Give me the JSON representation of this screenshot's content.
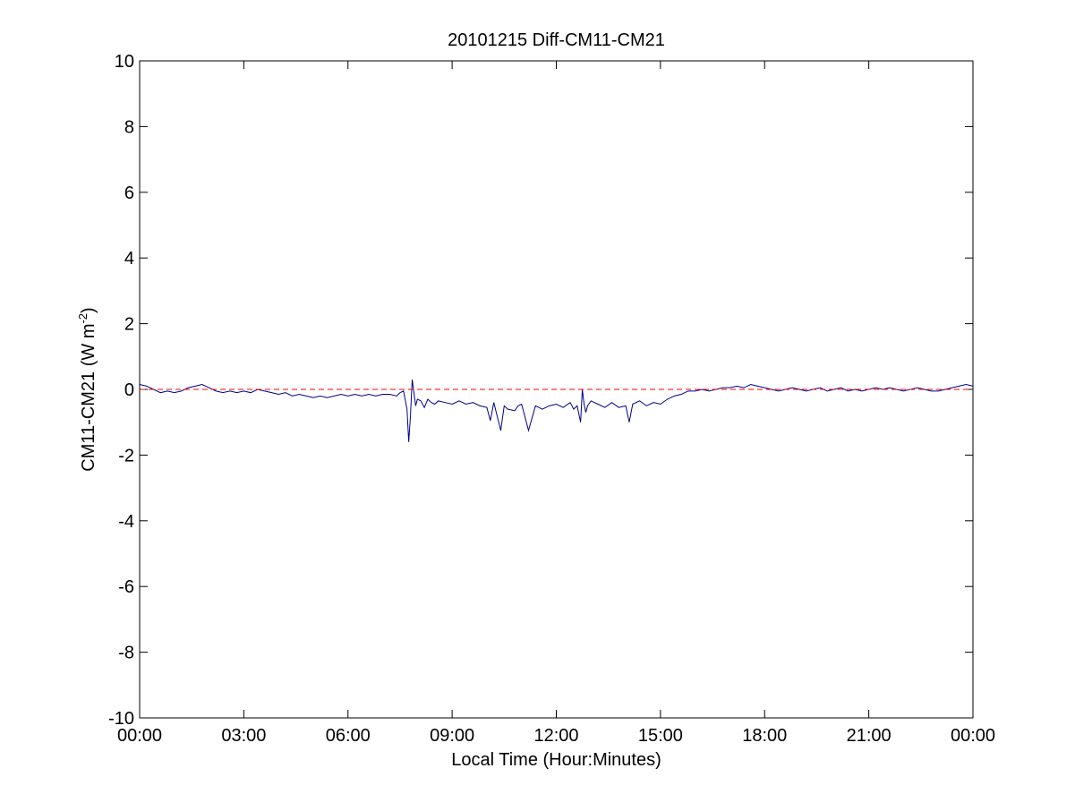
{
  "chart_data": {
    "type": "line",
    "title": "20101215 Diff-CM11-CM21",
    "xlabel": "Local Time (Hour:Minutes)",
    "ylabel": {
      "main": "CM11-CM21 (W m",
      "superscript": "-2",
      "close": ")"
    },
    "xlim_hours": [
      0,
      24
    ],
    "ylim": [
      -10,
      10
    ],
    "x_ticks": [
      {
        "hour": 0,
        "label": "00:00"
      },
      {
        "hour": 3,
        "label": "03:00"
      },
      {
        "hour": 6,
        "label": "06:00"
      },
      {
        "hour": 9,
        "label": "09:00"
      },
      {
        "hour": 12,
        "label": "12:00"
      },
      {
        "hour": 15,
        "label": "15:00"
      },
      {
        "hour": 18,
        "label": "18:00"
      },
      {
        "hour": 21,
        "label": "21:00"
      },
      {
        "hour": 24,
        "label": "00:00"
      }
    ],
    "y_ticks": [
      {
        "value": 10,
        "label": "10"
      },
      {
        "value": 8,
        "label": "8"
      },
      {
        "value": 6,
        "label": "6"
      },
      {
        "value": 4,
        "label": "4"
      },
      {
        "value": 2,
        "label": "2"
      },
      {
        "value": 0,
        "label": "0"
      },
      {
        "value": -2,
        "label": "-2"
      },
      {
        "value": -4,
        "label": "-4"
      },
      {
        "value": -6,
        "label": "-6"
      },
      {
        "value": -8,
        "label": "-8"
      },
      {
        "value": -10,
        "label": "-10"
      }
    ],
    "grid": false,
    "series": [
      {
        "style": "solid",
        "color": "#00008B",
        "x_hours": [
          0.0,
          0.2,
          0.4,
          0.6,
          0.8,
          1.0,
          1.2,
          1.4,
          1.6,
          1.8,
          2.0,
          2.2,
          2.4,
          2.6,
          2.8,
          3.0,
          3.2,
          3.4,
          3.6,
          3.8,
          4.0,
          4.2,
          4.4,
          4.6,
          4.8,
          5.0,
          5.2,
          5.4,
          5.6,
          5.8,
          6.0,
          6.2,
          6.4,
          6.6,
          6.8,
          7.0,
          7.2,
          7.4,
          7.5,
          7.6,
          7.7,
          7.75,
          7.8,
          7.85,
          7.9,
          7.95,
          8.0,
          8.1,
          8.2,
          8.3,
          8.4,
          8.5,
          8.6,
          8.8,
          9.0,
          9.2,
          9.4,
          9.6,
          9.8,
          10.0,
          10.1,
          10.2,
          10.4,
          10.5,
          10.6,
          10.8,
          10.9,
          11.0,
          11.2,
          11.4,
          11.6,
          11.8,
          12.0,
          12.2,
          12.4,
          12.5,
          12.6,
          12.7,
          12.75,
          12.8,
          12.85,
          12.9,
          13.0,
          13.2,
          13.4,
          13.6,
          13.8,
          14.0,
          14.1,
          14.2,
          14.4,
          14.6,
          14.8,
          15.0,
          15.2,
          15.4,
          15.6,
          15.8,
          16.0,
          16.2,
          16.4,
          16.6,
          16.8,
          17.0,
          17.2,
          17.4,
          17.6,
          17.8,
          18.0,
          18.2,
          18.4,
          18.6,
          18.8,
          19.0,
          19.2,
          19.4,
          19.6,
          19.8,
          20.0,
          20.2,
          20.4,
          20.6,
          20.8,
          21.0,
          21.2,
          21.4,
          21.6,
          21.8,
          22.0,
          22.2,
          22.4,
          22.6,
          22.8,
          23.0,
          23.2,
          23.4,
          23.6,
          23.8,
          24.0
        ],
        "y": [
          0.15,
          0.1,
          0.0,
          -0.1,
          -0.05,
          -0.1,
          -0.05,
          0.05,
          0.1,
          0.15,
          0.05,
          -0.05,
          -0.1,
          -0.05,
          -0.1,
          -0.05,
          -0.1,
          0.0,
          -0.05,
          -0.1,
          -0.15,
          -0.1,
          -0.2,
          -0.15,
          -0.2,
          -0.25,
          -0.2,
          -0.25,
          -0.2,
          -0.15,
          -0.2,
          -0.15,
          -0.2,
          -0.15,
          -0.2,
          -0.15,
          -0.15,
          -0.2,
          -0.1,
          -0.05,
          -0.6,
          -1.6,
          -0.8,
          0.3,
          -0.1,
          -0.5,
          -0.3,
          -0.35,
          -0.55,
          -0.3,
          -0.4,
          -0.45,
          -0.35,
          -0.4,
          -0.45,
          -0.35,
          -0.45,
          -0.4,
          -0.5,
          -0.55,
          -0.95,
          -0.4,
          -1.25,
          -0.5,
          -0.6,
          -0.65,
          -0.5,
          -0.45,
          -1.25,
          -0.5,
          -0.6,
          -0.5,
          -0.45,
          -0.55,
          -0.4,
          -0.6,
          -0.5,
          -1.0,
          0.0,
          -0.45,
          -0.7,
          -0.5,
          -0.35,
          -0.45,
          -0.55,
          -0.4,
          -0.55,
          -0.5,
          -1.0,
          -0.45,
          -0.35,
          -0.5,
          -0.4,
          -0.45,
          -0.3,
          -0.2,
          -0.15,
          -0.05,
          -0.05,
          0.0,
          -0.05,
          0.0,
          0.05,
          0.05,
          0.1,
          0.05,
          0.15,
          0.1,
          0.05,
          0.0,
          -0.05,
          0.0,
          0.05,
          0.0,
          -0.05,
          0.0,
          0.05,
          -0.05,
          0.0,
          0.05,
          -0.05,
          0.0,
          -0.05,
          0.0,
          0.05,
          0.0,
          0.05,
          0.0,
          -0.05,
          0.0,
          0.05,
          0.0,
          -0.05,
          -0.05,
          0.0,
          0.05,
          0.1,
          0.15,
          0.1
        ]
      },
      {
        "style": "dashed",
        "color": "#FF0000",
        "x_hours": [
          0,
          24
        ],
        "y": [
          0,
          0
        ]
      }
    ]
  }
}
